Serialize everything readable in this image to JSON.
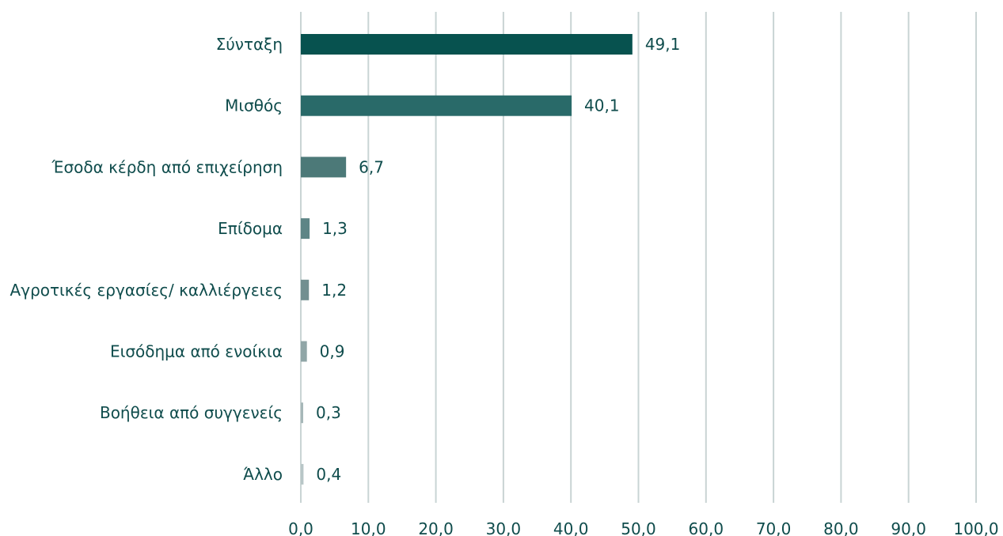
{
  "chart_data": {
    "type": "bar",
    "orientation": "horizontal",
    "categories": [
      "Σύνταξη",
      "Μισθός",
      "Έσοδα κέρδη από επιχείρηση",
      "Επίδομα",
      "Αγροτικές εργασίες/ καλλιέργειες",
      "Εισόδημα από ενοίκια",
      "Βοήθεια από συγγενείς",
      "Άλλο"
    ],
    "values": [
      49.1,
      40.1,
      6.7,
      1.3,
      1.2,
      0.9,
      0.3,
      0.4
    ],
    "value_labels": [
      "49,1",
      "40,1",
      "6,7",
      "1,3",
      "1,2",
      "0,9",
      "0,3",
      "0,4"
    ],
    "bar_colors": [
      "#07524f",
      "#296a69",
      "#4c7978",
      "#5e8586",
      "#728f90",
      "#90a6a7",
      "#a6b7b8",
      "#b8c6c7"
    ],
    "xlim": [
      0,
      100
    ],
    "ticks": [
      0,
      10,
      20,
      30,
      40,
      50,
      60,
      70,
      80,
      90,
      100
    ],
    "tick_labels": [
      "0,0",
      "10,0",
      "20,0",
      "30,0",
      "40,0",
      "50,0",
      "60,0",
      "70,0",
      "80,0",
      "90,0",
      "100,0"
    ],
    "grid": true,
    "title": "",
    "xlabel": "",
    "ylabel": ""
  },
  "colors": {
    "text": "#0f4c4c",
    "grid": "#c9d4d4"
  }
}
